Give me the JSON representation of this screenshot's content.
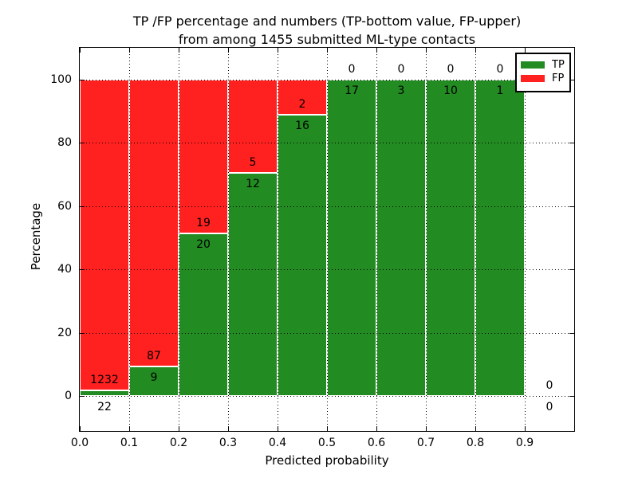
{
  "title": {
    "line1": "TP /FP percentage and numbers (TP-bottom value, FP-upper)",
    "line2": "from among 1455 submitted ML-type contacts"
  },
  "chart_data": {
    "type": "bar",
    "stacked": true,
    "normalized": "percent",
    "title": "TP /FP percentage and numbers (TP-bottom value, FP-upper) from among 1455 submitted ML-type contacts",
    "xlabel": "Predicted probability",
    "ylabel": "Percentage",
    "total_contacts": 1455,
    "bin_width": 0.1,
    "categories": [
      "0.0-0.1",
      "0.1-0.2",
      "0.2-0.3",
      "0.3-0.4",
      "0.4-0.5",
      "0.5-0.6",
      "0.6-0.7",
      "0.7-0.8",
      "0.8-0.9",
      "0.9-1.0"
    ],
    "series": [
      {
        "name": "TP",
        "color": "#228B22",
        "values": [
          22,
          9,
          20,
          12,
          16,
          17,
          3,
          10,
          1,
          0
        ]
      },
      {
        "name": "FP",
        "color": "#FF2020",
        "values": [
          1232,
          87,
          19,
          5,
          2,
          0,
          0,
          0,
          0,
          0
        ]
      }
    ],
    "x_tick_labels": [
      "0.0",
      "0.1",
      "0.2",
      "0.3",
      "0.4",
      "0.5",
      "0.6",
      "0.7",
      "0.8",
      "0.9"
    ],
    "x_tick_values": [
      0.0,
      0.1,
      0.2,
      0.3,
      0.4,
      0.5,
      0.6,
      0.7,
      0.8,
      0.9
    ],
    "y_tick_labels": [
      "0",
      "20",
      "40",
      "60",
      "80",
      "100"
    ],
    "y_tick_values": [
      0,
      20,
      40,
      60,
      80,
      100
    ],
    "xlim": [
      0.0,
      1.0
    ],
    "ylim": [
      -11,
      110
    ],
    "grid": "dotted",
    "legend_position": "upper right"
  }
}
